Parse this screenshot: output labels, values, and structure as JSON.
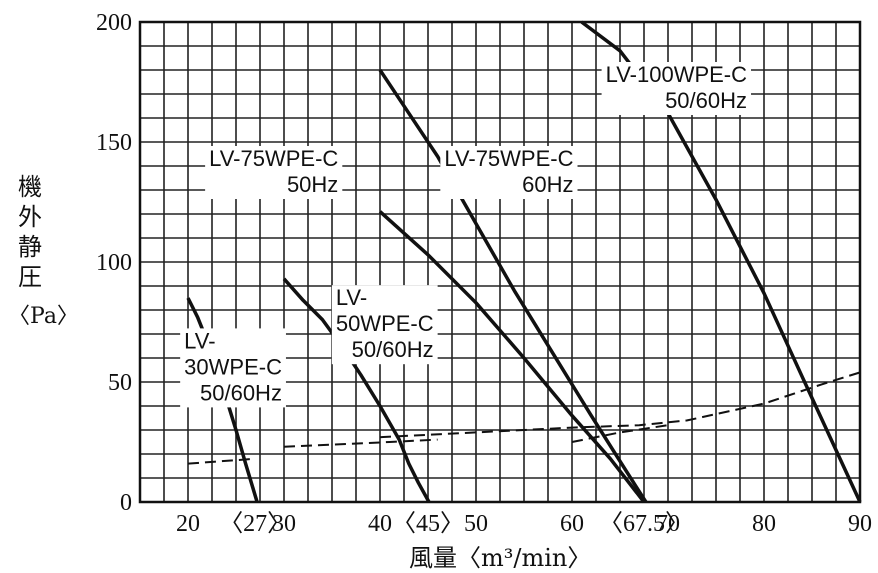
{
  "chart_data": {
    "type": "line",
    "title": "",
    "ylabel": "機外静圧",
    "ylabel_chars": [
      "機",
      "外",
      "静",
      "圧"
    ],
    "yunit": "〈Pa〉",
    "xlabel": "風量〈m³/min〉",
    "xlim": [
      15,
      90
    ],
    "ylim": [
      0,
      200
    ],
    "grid": true,
    "x_ticks": [
      {
        "value": 20,
        "label": "20"
      },
      {
        "value": 27,
        "label": "〈27〉"
      },
      {
        "value": 30,
        "label": "30"
      },
      {
        "value": 40,
        "label": "40"
      },
      {
        "value": 45,
        "label": "〈45〉"
      },
      {
        "value": 50,
        "label": "50"
      },
      {
        "value": 60,
        "label": "60"
      },
      {
        "value": 67.5,
        "label": "〈67.5〉"
      },
      {
        "value": 70,
        "label": "70"
      },
      {
        "value": 80,
        "label": "80"
      },
      {
        "value": 90,
        "label": "90"
      }
    ],
    "y_ticks": [
      0,
      50,
      100,
      150,
      200
    ],
    "series": [
      {
        "name": "LV-30WPE-C 50/60Hz",
        "label_lines": [
          "LV-",
          "30WPE-C",
          "50/60Hz"
        ],
        "label_anchor": [
          19.6,
          64
        ],
        "x": [
          20,
          21,
          22,
          23,
          24,
          25,
          26,
          27.2
        ],
        "y": [
          85,
          77,
          67,
          56,
          43,
          30,
          16,
          0
        ]
      },
      {
        "name": "LV-50WPE-C 50/60Hz",
        "label_lines": [
          "LV-",
          "50WPE-C",
          "50/60Hz"
        ],
        "label_anchor": [
          35.4,
          82
        ],
        "x": [
          30,
          32,
          34,
          36,
          38,
          40,
          42,
          43,
          44,
          45.1
        ],
        "y": [
          93,
          84,
          76,
          65,
          53,
          40,
          26,
          16,
          8,
          0
        ]
      },
      {
        "name": "LV-75WPE-C 50Hz",
        "label_lines": [
          "LV-75WPE-C",
          "50Hz"
        ],
        "label_anchor": [
          22.2,
          140
        ],
        "x": [
          40,
          45,
          50,
          55,
          60,
          64,
          67.5
        ],
        "y": [
          121,
          103,
          83,
          60,
          36,
          18,
          0
        ]
      },
      {
        "name": "LV-75WPE-C 60Hz",
        "label_lines": [
          "LV-75WPE-C",
          "60Hz"
        ],
        "label_anchor": [
          46.7,
          140
        ],
        "x": [
          40,
          43,
          46,
          50,
          54,
          58,
          62,
          65,
          67.7
        ],
        "y": [
          180,
          162,
          144,
          116,
          88,
          62,
          36,
          17,
          0
        ]
      },
      {
        "name": "LV-100WPE-C 50/60Hz",
        "label_lines": [
          "LV-100WPE-C",
          "50/60Hz"
        ],
        "label_anchor": [
          63.5,
          175
        ],
        "x": [
          61,
          65,
          70,
          75,
          80,
          84,
          87,
          90
        ],
        "y": [
          200,
          188,
          162,
          126,
          87,
          52,
          26,
          0
        ]
      }
    ],
    "system_curves": [
      {
        "x": [
          20,
          27
        ],
        "y": [
          16,
          18
        ]
      },
      {
        "x": [
          30,
          41,
          46
        ],
        "y": [
          23,
          25,
          26
        ]
      },
      {
        "x": [
          40,
          50,
          60,
          67,
          72,
          80,
          86,
          90
        ],
        "y": [
          27,
          29,
          31,
          32,
          34,
          41,
          49,
          54
        ]
      },
      {
        "x": [
          60,
          65,
          70
        ],
        "y": [
          25,
          29,
          32
        ]
      }
    ]
  }
}
